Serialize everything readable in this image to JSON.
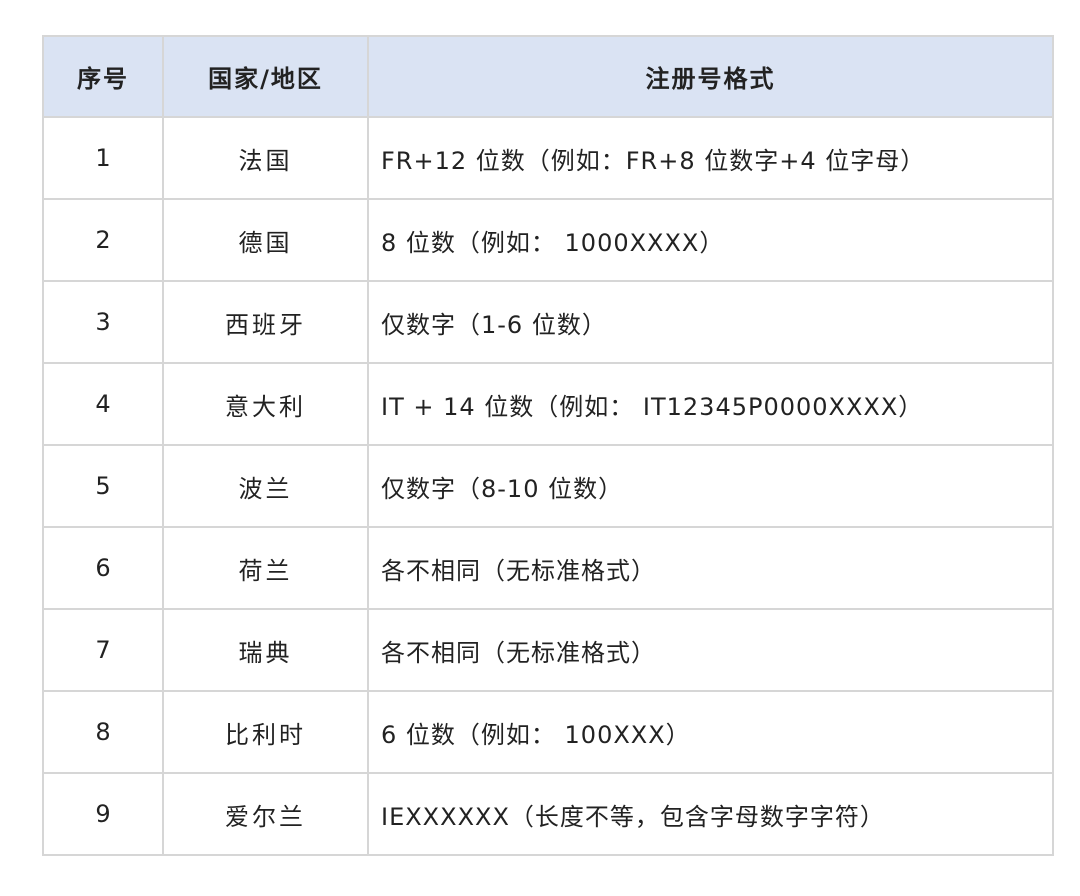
{
  "table": {
    "header_bg": "#dae3f3",
    "headers": [
      "序号",
      "国家/地区",
      "注册号格式"
    ],
    "rows": [
      {
        "num": "1",
        "country": "法国",
        "format": "FR+12 位数（例如：FR+8 位数字+4 位字母）"
      },
      {
        "num": "2",
        "country": "德国",
        "format": "8 位数（例如： 1000XXXX）"
      },
      {
        "num": "3",
        "country": "西班牙",
        "format": "仅数字（1-6 位数）"
      },
      {
        "num": "4",
        "country": "意大利",
        "format": "IT + 14 位数（例如： IT12345P0000XXXX）"
      },
      {
        "num": "5",
        "country": "波兰",
        "format": "仅数字（8-10 位数）"
      },
      {
        "num": "6",
        "country": "荷兰",
        "format": "各不相同（无标准格式）"
      },
      {
        "num": "7",
        "country": "瑞典",
        "format": "各不相同（无标准格式）"
      },
      {
        "num": "8",
        "country": "比利时",
        "format": "6 位数（例如： 100XXX）"
      },
      {
        "num": "9",
        "country": "爱尔兰",
        "format": "IEXXXXXX（长度不等，包含字母数字字符）"
      }
    ]
  }
}
